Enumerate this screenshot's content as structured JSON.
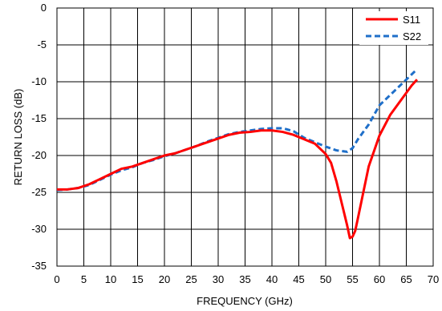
{
  "chart_data": {
    "type": "line",
    "title": "",
    "xlabel": "FREQUENCY (GHz)",
    "ylabel": "RETURN LOSS (dB)",
    "xlim": [
      0,
      70
    ],
    "ylim": [
      -35,
      0
    ],
    "xticks": [
      0,
      5,
      10,
      15,
      20,
      25,
      30,
      35,
      40,
      45,
      50,
      55,
      60,
      65,
      70
    ],
    "yticks": [
      0,
      -5,
      -10,
      -15,
      -20,
      -25,
      -30,
      -35
    ],
    "grid": true,
    "legend_position": "top-right",
    "series": [
      {
        "name": "S11",
        "color": "#ff0000",
        "style": "solid",
        "x": [
          0,
          2,
          4,
          6,
          8,
          10,
          12,
          14,
          16,
          18,
          20,
          22,
          24,
          26,
          28,
          30,
          32,
          34,
          36,
          38,
          40,
          42,
          44,
          46,
          48,
          50,
          51,
          52,
          53,
          54,
          54.5,
          55,
          55.5,
          56,
          57,
          58,
          60,
          62,
          64,
          66,
          67
        ],
        "y": [
          -24.6,
          -24.6,
          -24.4,
          -23.9,
          -23.2,
          -22.5,
          -21.8,
          -21.5,
          -21.0,
          -20.5,
          -20.0,
          -19.7,
          -19.2,
          -18.7,
          -18.2,
          -17.7,
          -17.2,
          -16.9,
          -16.8,
          -16.6,
          -16.6,
          -16.8,
          -17.2,
          -17.8,
          -18.4,
          -19.8,
          -21.0,
          -23.5,
          -26.5,
          -29.5,
          -31.2,
          -31.0,
          -30.2,
          -28.5,
          -25.0,
          -21.5,
          -17.3,
          -14.5,
          -12.5,
          -10.5,
          -9.7
        ]
      },
      {
        "name": "S22",
        "color": "#1f6fc9",
        "style": "dashed",
        "x": [
          0,
          2,
          4,
          6,
          8,
          10,
          12,
          14,
          16,
          18,
          20,
          22,
          24,
          26,
          28,
          30,
          32,
          34,
          36,
          38,
          40,
          42,
          44,
          46,
          48,
          50,
          52,
          54,
          55,
          56,
          58,
          60,
          62,
          64,
          66,
          67
        ],
        "y": [
          -24.7,
          -24.6,
          -24.4,
          -24.0,
          -23.3,
          -22.6,
          -22.0,
          -21.6,
          -21.0,
          -20.6,
          -20.1,
          -19.7,
          -19.2,
          -18.7,
          -18.1,
          -17.6,
          -17.1,
          -16.8,
          -16.6,
          -16.4,
          -16.3,
          -16.3,
          -16.7,
          -17.6,
          -18.2,
          -18.8,
          -19.3,
          -19.5,
          -19.0,
          -17.8,
          -15.8,
          -13.2,
          -11.8,
          -10.4,
          -9.0,
          -8.3
        ]
      }
    ]
  }
}
